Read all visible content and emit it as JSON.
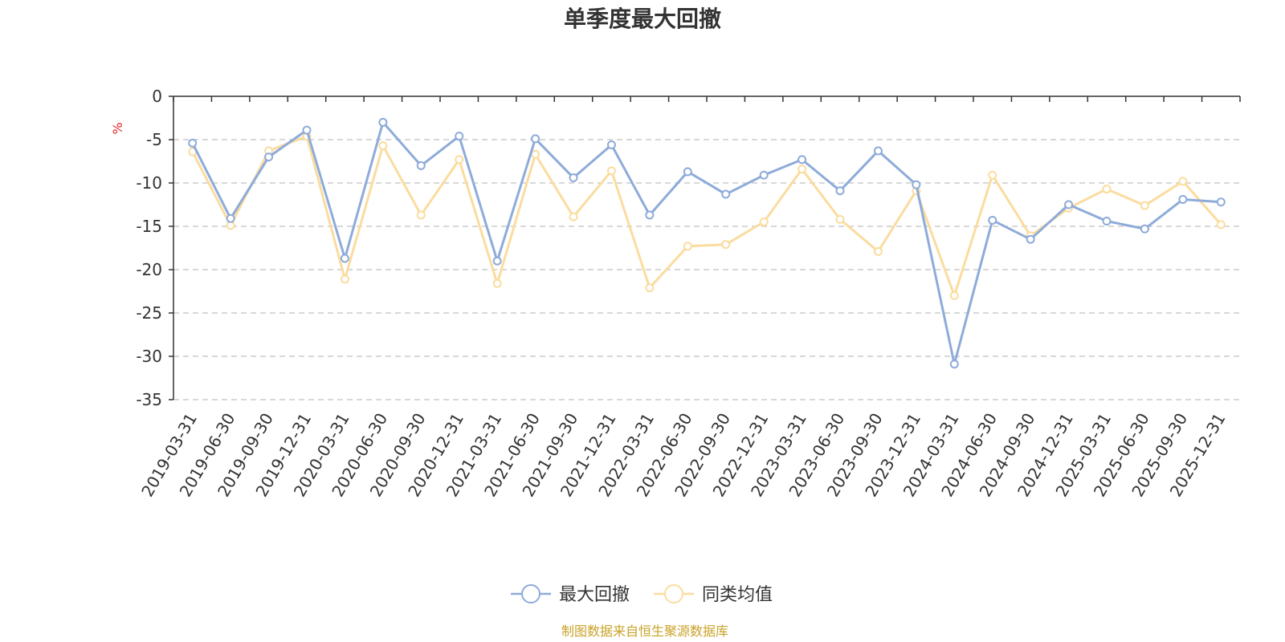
{
  "chart_data": {
    "type": "line",
    "title": "单季度最大回撤",
    "ylabel": "%",
    "ylim": [
      -35,
      0
    ],
    "yticks": [
      0,
      -5,
      -10,
      -15,
      -20,
      -25,
      -30,
      -35
    ],
    "grid": true,
    "legend_position": "bottom",
    "categories": [
      "2019-03-31",
      "2019-06-30",
      "2019-09-30",
      "2019-12-31",
      "2020-03-31",
      "2020-06-30",
      "2020-09-30",
      "2020-12-31",
      "2021-03-31",
      "2021-06-30",
      "2021-09-30",
      "2021-12-31",
      "2022-03-31",
      "2022-06-30",
      "2022-09-30",
      "2022-12-31",
      "2023-03-31",
      "2023-06-30",
      "2023-09-30",
      "2023-12-31",
      "2024-03-31",
      "2024-06-30",
      "2024-09-30",
      "2024-12-31",
      "2025-03-31",
      "2025-06-30",
      "2025-09-30",
      "2025-12-31"
    ],
    "series": [
      {
        "name": "最大回撤",
        "color": "#8eabd9",
        "values": [
          -5.4,
          -14.1,
          -7.0,
          -3.9,
          -18.7,
          -3.0,
          -8.0,
          -4.6,
          -19.0,
          -4.9,
          -9.4,
          -5.6,
          -13.7,
          -8.7,
          -11.3,
          -9.1,
          -7.3,
          -10.9,
          -6.3,
          -10.2,
          -30.9,
          -14.3,
          -16.5,
          -12.5,
          -14.4,
          -15.3,
          -11.9,
          -12.2
        ]
      },
      {
        "name": "同类均值",
        "color": "#fbdc9f",
        "values": [
          -6.4,
          -14.9,
          -6.3,
          -4.6,
          -21.1,
          -5.7,
          -13.7,
          -7.3,
          -21.6,
          -6.7,
          -13.9,
          -8.6,
          -22.1,
          -17.3,
          -17.1,
          -14.5,
          -8.4,
          -14.2,
          -17.9,
          -10.9,
          -23.0,
          -9.1,
          -16.1,
          -12.9,
          -10.7,
          -12.6,
          -9.8,
          -14.8
        ]
      }
    ]
  },
  "footer": {
    "source": "制图数据来自恒生聚源数据库"
  }
}
